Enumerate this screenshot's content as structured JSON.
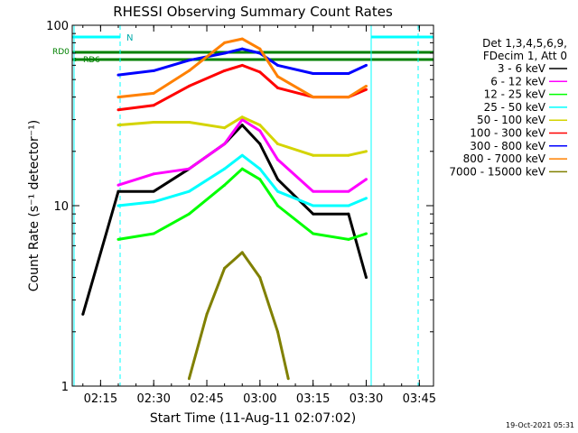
{
  "chart_data": {
    "type": "line",
    "title": "RHESSI Observing Summary Count Rates",
    "xlabel": "Start Time (11-Aug-11 02:07:02)",
    "ylabel": "Count Rate (s⁻¹ detector⁻¹)",
    "y_scale": "log",
    "ylim": [
      1,
      100
    ],
    "xlim": [
      "02:07",
      "03:49"
    ],
    "x_tick_labels": [
      "02:15",
      "02:30",
      "02:45",
      "03:00",
      "03:15",
      "03:30",
      "03:45"
    ],
    "y_tick_labels": [
      "1",
      "10",
      "100"
    ],
    "grid": false,
    "legend_position": "right",
    "legend_header": [
      "Det 1,3,4,5,6,9,",
      "FDecim 1, Att 0"
    ],
    "flag_labels": [
      "N",
      "RD0",
      "RD6"
    ],
    "timestamp": "19-Oct-2021 05:31",
    "series": [
      {
        "name": "3 - 6 keV",
        "color": "#000000",
        "x": [
          "02:10",
          "02:20",
          "02:30",
          "02:40",
          "02:50",
          "02:55",
          "03:00",
          "03:05",
          "03:15",
          "03:25",
          "03:30"
        ],
        "values": [
          2.5,
          12,
          12,
          16,
          22,
          28,
          22,
          14,
          9,
          9,
          4
        ]
      },
      {
        "name": "6 - 12 keV",
        "color": "#ff00ff",
        "x": [
          "02:20",
          "02:30",
          "02:40",
          "02:50",
          "02:55",
          "03:00",
          "03:05",
          "03:15",
          "03:25",
          "03:30"
        ],
        "values": [
          13,
          15,
          16,
          22,
          30,
          26,
          18,
          12,
          12,
          14
        ]
      },
      {
        "name": "12 - 25 keV",
        "color": "#00ff00",
        "x": [
          "02:20",
          "02:30",
          "02:40",
          "02:50",
          "02:55",
          "03:00",
          "03:05",
          "03:15",
          "03:25",
          "03:30"
        ],
        "values": [
          6.5,
          7,
          9,
          13,
          16,
          14,
          10,
          7,
          6.5,
          7
        ]
      },
      {
        "name": "25 - 50 keV",
        "color": "#00ffff",
        "x": [
          "02:20",
          "02:30",
          "02:40",
          "02:50",
          "02:55",
          "03:00",
          "03:05",
          "03:15",
          "03:25",
          "03:30"
        ],
        "values": [
          10,
          10.5,
          12,
          16,
          19,
          16,
          12,
          10,
          10,
          11
        ]
      },
      {
        "name": "50 - 100 keV",
        "color": "#d4d400",
        "x": [
          "02:20",
          "02:30",
          "02:40",
          "02:50",
          "02:55",
          "03:00",
          "03:05",
          "03:15",
          "03:25",
          "03:30"
        ],
        "values": [
          28,
          29,
          29,
          27,
          31,
          28,
          22,
          19,
          19,
          20
        ]
      },
      {
        "name": "100 - 300 keV",
        "color": "#ff0000",
        "x": [
          "02:20",
          "02:30",
          "02:40",
          "02:50",
          "02:55",
          "03:00",
          "03:05",
          "03:15",
          "03:25",
          "03:30"
        ],
        "values": [
          34,
          36,
          46,
          56,
          60,
          55,
          45,
          40,
          40,
          44
        ]
      },
      {
        "name": "300 - 800 keV",
        "color": "#0000ff",
        "x": [
          "02:20",
          "02:30",
          "02:40",
          "02:50",
          "02:55",
          "03:00",
          "03:05",
          "03:15",
          "03:25",
          "03:30"
        ],
        "values": [
          53,
          56,
          64,
          70,
          74,
          70,
          60,
          54,
          54,
          60
        ]
      },
      {
        "name": "800 - 7000 keV",
        "color": "#ff8000",
        "x": [
          "02:20",
          "02:30",
          "02:40",
          "02:50",
          "02:55",
          "03:00",
          "03:05",
          "03:15",
          "03:25",
          "03:30"
        ],
        "values": [
          40,
          42,
          56,
          80,
          84,
          74,
          52,
          40,
          40,
          46
        ]
      },
      {
        "name": "7000 - 15000 keV",
        "color": "#808000",
        "x": [
          "02:40",
          "02:45",
          "02:50",
          "02:55",
          "03:00",
          "03:05",
          "03:08"
        ],
        "values": [
          1.1,
          2.5,
          4.5,
          5.5,
          4,
          2,
          1.1
        ]
      }
    ]
  }
}
